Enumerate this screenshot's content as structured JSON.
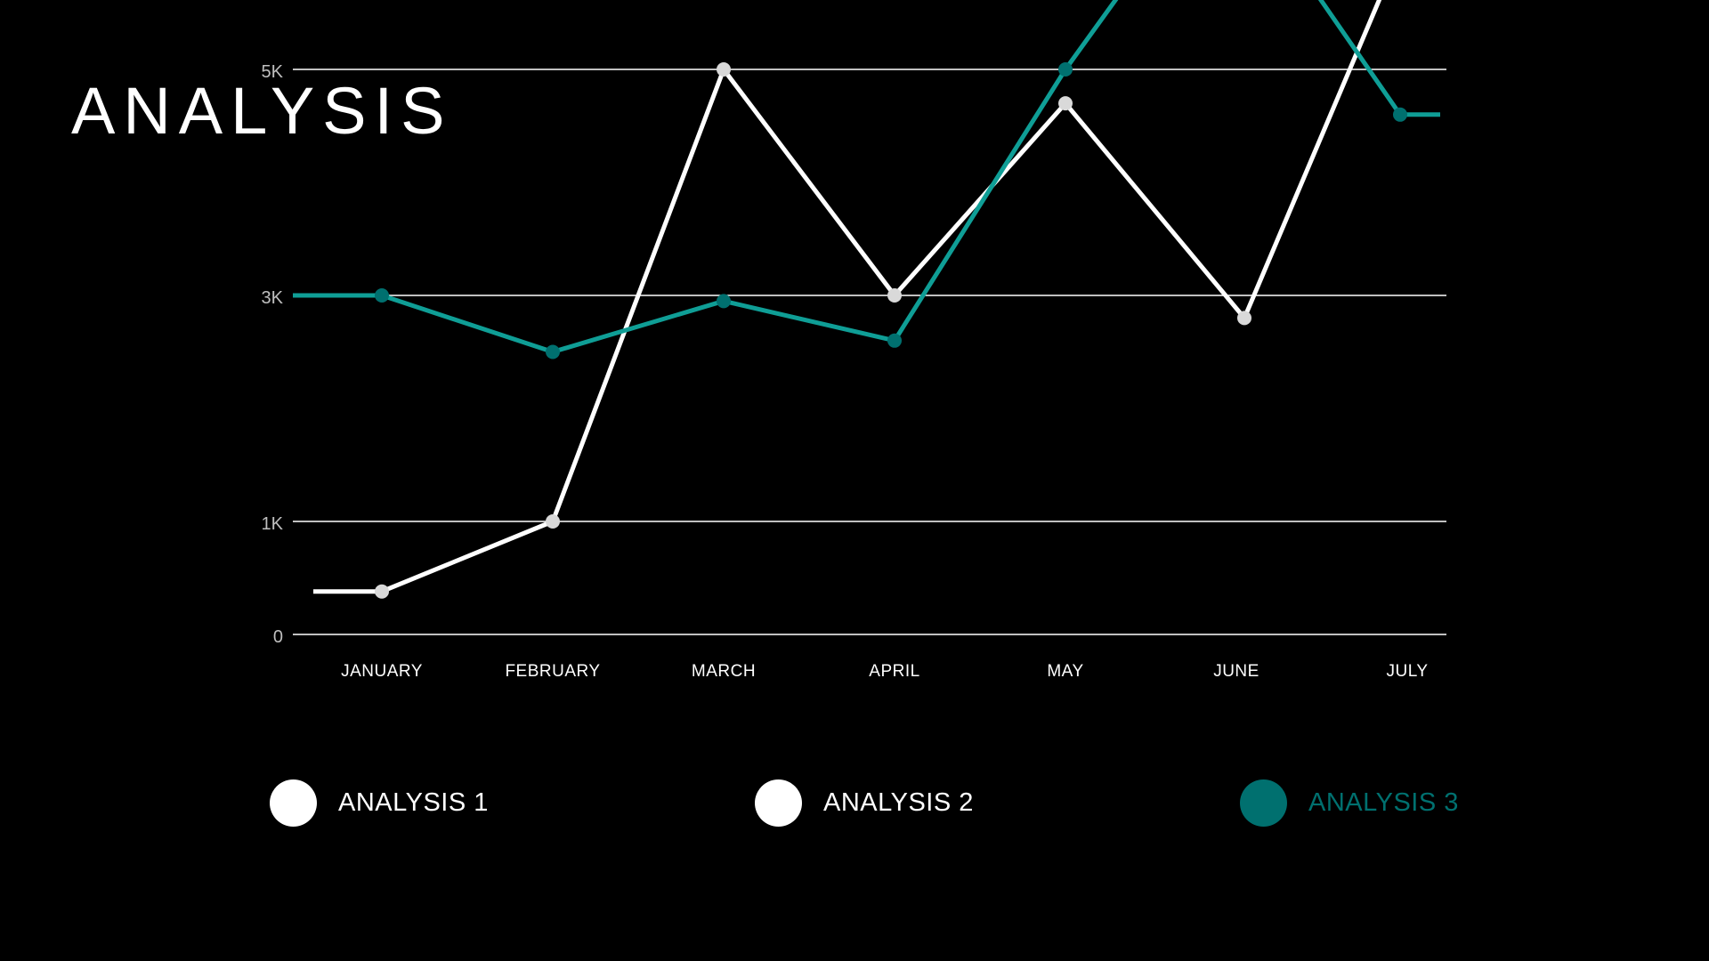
{
  "title": "ANALYSIS",
  "colors": {
    "background": "#000000",
    "analysis_1": "#ffffff",
    "analysis_2": "#ffffff",
    "analysis_3": "#00706f",
    "analysis_3_line": "#0f9e96",
    "analysis_2_marker": "#d9d9d9",
    "grid": "#ffffff",
    "axis_label": "#bfbfbf"
  },
  "legend": [
    {
      "label": "ANALYSIS 1",
      "color": "#ffffff",
      "text_color": "#ffffff"
    },
    {
      "label": "ANALYSIS 2",
      "color": "#ffffff",
      "text_color": "#ffffff"
    },
    {
      "label": "ANALYSIS 3",
      "color": "#00706f",
      "text_color": "#00706f"
    }
  ],
  "chart_data": {
    "type": "line",
    "title": "ANALYSIS",
    "categories": [
      "JANUARY",
      "FEBRUARY",
      "MARCH",
      "APRIL",
      "MAY",
      "JUNE",
      "JULY"
    ],
    "y_ticks": [
      {
        "value": 0,
        "label": "0"
      },
      {
        "value": 1000,
        "label": "1K"
      },
      {
        "value": 3000,
        "label": "3K"
      },
      {
        "value": 5000,
        "label": "5K"
      }
    ],
    "ylim": [
      0,
      5000
    ],
    "grid": true,
    "legend_position": "bottom",
    "series": [
      {
        "name": "ANALYSIS 2",
        "values": [
          380,
          1000,
          5000,
          3000,
          4700,
          2800,
          6200
        ],
        "color": "#ffffff"
      },
      {
        "name": "ANALYSIS 3",
        "values": [
          3000,
          2500,
          2950,
          2600,
          5000,
          6900,
          4600
        ],
        "color": "#0f9e96"
      }
    ]
  }
}
